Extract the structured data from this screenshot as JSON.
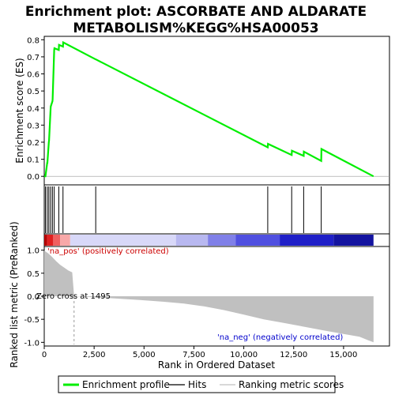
{
  "chart_data": {
    "type": "line",
    "title_lines": [
      "Enrichment plot: ASCORBATE AND ALDARATE",
      "METABOLISM%KEGG%HSA00053"
    ],
    "xlabel": "Rank in Ordered Dataset",
    "x_ticks": [
      0,
      2500,
      5000,
      7500,
      10000,
      12500,
      15000
    ],
    "x_tick_labels": [
      "0",
      "2,500",
      "5,000",
      "7,500",
      "10,000",
      "12,500",
      "15,000"
    ],
    "xlim": [
      0,
      17300
    ],
    "n_genes": 16500,
    "es_panel": {
      "ylabel": "Enrichment score (ES)",
      "ylim": [
        -0.05,
        0.82
      ],
      "y_ticks": [
        0.0,
        0.1,
        0.2,
        0.3,
        0.4,
        0.5,
        0.6,
        0.7,
        0.8
      ],
      "y_tick_labels": [
        "0.0",
        "0.1",
        "0.2",
        "0.3",
        "0.4",
        "0.5",
        "0.6",
        "0.7",
        "0.8"
      ],
      "series": [
        {
          "name": "Enrichment profile",
          "color": "#00ee00",
          "x": [
            0,
            60,
            150,
            160,
            230,
            240,
            320,
            330,
            410,
            420,
            500,
            510,
            730,
            740,
            940,
            950,
            2580,
            2590,
            11200,
            11210,
            12400,
            12410,
            13000,
            13010,
            13880,
            13890,
            16500
          ],
          "y": [
            0.0,
            0.0,
            0.08,
            0.08,
            0.2,
            0.21,
            0.4,
            0.41,
            0.44,
            0.45,
            0.74,
            0.75,
            0.74,
            0.77,
            0.76,
            0.785,
            0.685,
            0.685,
            0.17,
            0.19,
            0.125,
            0.15,
            0.12,
            0.145,
            0.09,
            0.16,
            0.0
          ]
        }
      ]
    },
    "hits": [
      60,
      150,
      230,
      320,
      410,
      500,
      730,
      940,
      2580,
      11200,
      12400,
      13000,
      13880
    ],
    "ranking_panel": {
      "ylabel": "Ranked list metric (PreRanked)",
      "ylim": [
        -1.08,
        1.08
      ],
      "y_ticks": [
        1.0,
        0.5,
        0.0,
        -0.5,
        -1.0
      ],
      "y_tick_labels": [
        "1.0",
        "0.5",
        "0.0",
        "-0.5",
        "-1.0"
      ],
      "zero_cross": 1495,
      "zero_cross_label": "Zero cross at 1495",
      "pos_label": "'na_pos' (positively correlated)",
      "neg_label": "'na_neg' (negatively correlated)",
      "fill_color": "#c0c0c0",
      "profile_x": [
        0,
        200,
        400,
        600,
        800,
        1000,
        1200,
        1400,
        1495,
        1500,
        2500,
        4800,
        6000,
        7000,
        8000,
        9000,
        10000,
        11000,
        12000,
        13000,
        14000,
        15000,
        15800,
        16200,
        16500
      ],
      "profile_y": [
        0.99,
        0.93,
        0.85,
        0.76,
        0.68,
        0.62,
        0.56,
        0.52,
        0.0,
        0.0,
        -0.02,
        -0.08,
        -0.12,
        -0.16,
        -0.22,
        -0.3,
        -0.4,
        -0.5,
        -0.58,
        -0.66,
        -0.74,
        -0.82,
        -0.88,
        -0.95,
        -1.0
      ]
    },
    "color_bar": {
      "segments": [
        {
          "end": 150,
          "color": "#b40000"
        },
        {
          "end": 450,
          "color": "#e02020"
        },
        {
          "end": 800,
          "color": "#f06060"
        },
        {
          "end": 1300,
          "color": "#f8a8a8"
        },
        {
          "end": 6600,
          "color": "#d8d8f8"
        },
        {
          "end": 8200,
          "color": "#b8b8f0"
        },
        {
          "end": 9600,
          "color": "#8080e8"
        },
        {
          "end": 11800,
          "color": "#5050e0"
        },
        {
          "end": 14500,
          "color": "#2020c8"
        },
        {
          "end": 16500,
          "color": "#1414a0"
        }
      ]
    },
    "legend": {
      "items": [
        {
          "label": "Enrichment profile",
          "color": "#00ee00",
          "kind": "thick-line"
        },
        {
          "label": "Hits",
          "color": "#000000",
          "kind": "line"
        },
        {
          "label": "Ranking metric scores",
          "color": "#c0c0c0",
          "kind": "line"
        }
      ]
    }
  }
}
